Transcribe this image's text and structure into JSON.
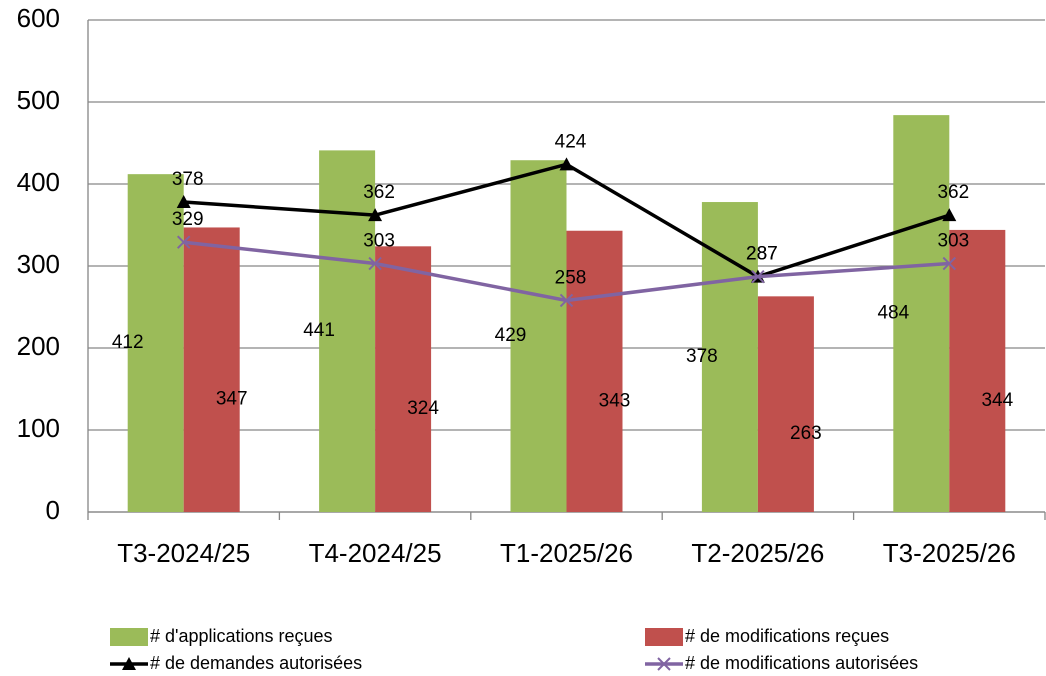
{
  "chart_data": {
    "type": "bar",
    "categories": [
      "T3-2024/25",
      "T4-2024/25",
      "T1-2025/26",
      "T2-2025/26",
      "T3-2025/26"
    ],
    "series": [
      {
        "name": "# d'applications reçues",
        "type": "bar",
        "color": "#9bbb59",
        "values": [
          412,
          441,
          429,
          378,
          484
        ]
      },
      {
        "name": "# de modifications reçues",
        "type": "bar",
        "color": "#c0504d",
        "values": [
          347,
          324,
          343,
          263,
          344
        ]
      },
      {
        "name": "# de demandes autorisées",
        "type": "line",
        "marker": "triangle",
        "color": "#000000",
        "values": [
          378,
          362,
          424,
          287,
          362
        ]
      },
      {
        "name": "# de modifications autorisées",
        "type": "line",
        "marker": "x",
        "color": "#8064a2",
        "values": [
          329,
          303,
          258,
          287,
          303
        ]
      }
    ],
    "ylim": [
      0,
      600
    ],
    "yticks": [
      0,
      100,
      200,
      300,
      400,
      500,
      600
    ],
    "grid": true,
    "legend": "bottom"
  }
}
